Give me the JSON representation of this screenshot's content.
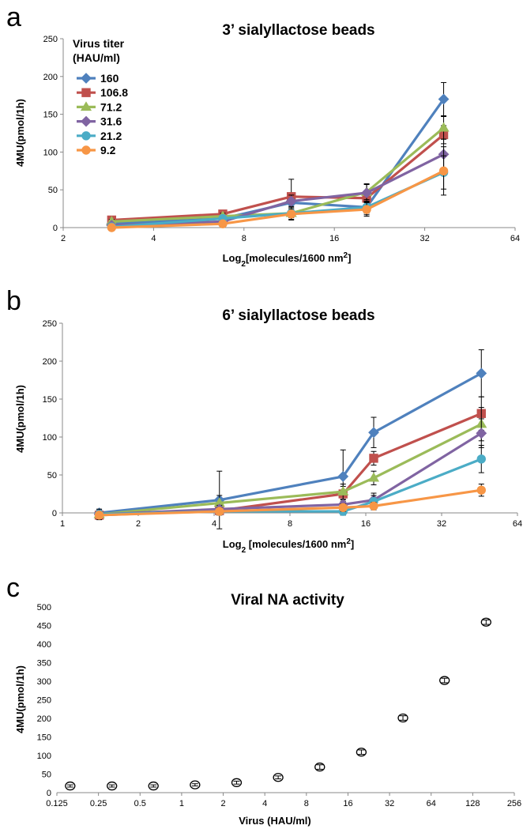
{
  "chart_data": [
    {
      "panel": "a",
      "type": "line",
      "title": "3’ sialyllactose beads",
      "xlabel_main": "Log",
      "xlabel_sub": "2",
      "xlabel_rest": "[molecules/1600 nm",
      "xlabel_sup": "2",
      "xlabel_end": "]",
      "ylabel": "4MU(pmol/1h)",
      "x_scale": "log2",
      "xlim": [
        2,
        64
      ],
      "ylim": [
        0,
        250
      ],
      "x_ticks": [
        2,
        4,
        8,
        16,
        32,
        64
      ],
      "x_tick_labels": [
        "2",
        "4",
        "8",
        "16",
        "32",
        "64"
      ],
      "y_ticks": [
        0,
        50,
        100,
        150,
        200,
        250
      ],
      "y_tick_labels": [
        "0",
        "50",
        "100",
        "150",
        "200",
        "250"
      ],
      "legend": {
        "title_line1": "Virus titer",
        "title_line2": "(HAU/ml)",
        "position": "top-left"
      },
      "x": [
        2.9,
        6.8,
        11.5,
        20.5,
        37
      ],
      "series": [
        {
          "name": "160",
          "color": "#4f81bd",
          "marker": "diamond",
          "values": [
            5,
            12,
            33,
            27,
            170
          ],
          "errors": [
            4,
            4,
            10,
            10,
            22
          ]
        },
        {
          "name": "106.8",
          "color": "#c0504d",
          "marker": "square",
          "values": [
            10,
            18,
            41,
            39,
            123
          ],
          "errors": [
            3,
            4,
            23,
            10,
            12
          ]
        },
        {
          "name": "71.2",
          "color": "#9bbb59",
          "marker": "triangle",
          "values": [
            8,
            15,
            19,
            47,
            132
          ],
          "errors": [
            3,
            4,
            9,
            10,
            15
          ]
        },
        {
          "name": "31.6",
          "color": "#8064a2",
          "marker": "diamond",
          "values": [
            3,
            8,
            35,
            46,
            97
          ],
          "errors": [
            3,
            4,
            8,
            12,
            20
          ]
        },
        {
          "name": "21.2",
          "color": "#4bacc6",
          "marker": "circle",
          "values": [
            1,
            12,
            19,
            27,
            73
          ],
          "errors": [
            3,
            4,
            6,
            8,
            22
          ]
        },
        {
          "name": "9.2",
          "color": "#f79646",
          "marker": "circle",
          "values": [
            0,
            5,
            18,
            24,
            75
          ],
          "errors": [
            4,
            4,
            7,
            9,
            32
          ]
        }
      ]
    },
    {
      "panel": "b",
      "type": "line",
      "title": "6’ sialyllactose beads",
      "xlabel_main": "Log",
      "xlabel_sub": "2",
      "xlabel_rest": " [molecules/1600 nm",
      "xlabel_sup": "2",
      "xlabel_end": "]",
      "ylabel": "4MU(pmol/1h)",
      "x_scale": "log2",
      "xlim": [
        1,
        64
      ],
      "ylim": [
        0,
        250
      ],
      "x_ticks": [
        1,
        2,
        4,
        8,
        16,
        32,
        64
      ],
      "x_tick_labels": [
        "1",
        "2",
        "4",
        "8",
        "16",
        "32",
        "64"
      ],
      "y_ticks": [
        0,
        50,
        100,
        150,
        200,
        250
      ],
      "y_tick_labels": [
        "0",
        "50",
        "100",
        "150",
        "200",
        "250"
      ],
      "x": [
        1.4,
        4.2,
        13,
        17.2,
        46
      ],
      "series": [
        {
          "name": "160",
          "color": "#4f81bd",
          "marker": "diamond",
          "values": [
            0,
            17,
            48,
            106,
            184
          ],
          "errors": [
            4,
            38,
            35,
            20,
            31
          ]
        },
        {
          "name": "106.8",
          "color": "#c0504d",
          "marker": "square",
          "values": [
            -3,
            3,
            25,
            72,
            131
          ],
          "errors": [
            4,
            4,
            10,
            9,
            22
          ]
        },
        {
          "name": "71.2",
          "color": "#9bbb59",
          "marker": "triangle",
          "values": [
            -2,
            13,
            28,
            46,
            117
          ],
          "errors": [
            4,
            10,
            10,
            9,
            22
          ]
        },
        {
          "name": "31.6",
          "color": "#8064a2",
          "marker": "diamond",
          "values": [
            -2,
            5,
            11,
            17,
            105
          ],
          "errors": [
            4,
            5,
            6,
            9,
            19
          ]
        },
        {
          "name": "21.2",
          "color": "#4bacc6",
          "marker": "circle",
          "values": [
            -2,
            2,
            2,
            15,
            71
          ],
          "errors": [
            7,
            5,
            5,
            8,
            18
          ]
        },
        {
          "name": "9.2",
          "color": "#f79646",
          "marker": "circle",
          "values": [
            -3,
            2,
            7,
            9,
            30
          ],
          "errors": [
            4,
            4,
            5,
            5,
            8
          ]
        }
      ]
    },
    {
      "panel": "c",
      "type": "scatter",
      "title": "Viral NA activity",
      "xlabel": "Virus (HAU/ml)",
      "ylabel": "4MU(pmol/1h)",
      "x_scale": "log2",
      "xlim": [
        0.125,
        256
      ],
      "ylim": [
        0,
        500
      ],
      "x_ticks": [
        0.125,
        0.25,
        0.5,
        1,
        2,
        4,
        8,
        16,
        32,
        64,
        128,
        256
      ],
      "x_tick_labels": [
        "0.125",
        "0.25",
        "0.5",
        "1",
        "2",
        "4",
        "8",
        "16",
        "32",
        "64",
        "128",
        "256"
      ],
      "y_ticks": [
        0,
        50,
        100,
        150,
        200,
        250,
        300,
        350,
        400,
        450,
        500
      ],
      "y_tick_labels": [
        "0",
        "50",
        "100",
        "150",
        "200",
        "250",
        "300",
        "350",
        "400",
        "450",
        "500"
      ],
      "series": [
        {
          "color": "#000000",
          "marker": "open-circle",
          "x": [
            0.156,
            0.313,
            0.625,
            1.25,
            2.5,
            5,
            10,
            20,
            40,
            80,
            160
          ],
          "values": [
            18,
            18,
            18,
            21,
            27,
            41,
            69,
            109,
            201,
            302,
            459
          ],
          "errors": [
            3,
            3,
            3,
            3,
            4,
            4,
            6,
            6,
            6,
            6,
            6
          ]
        }
      ]
    }
  ],
  "panel_letters": {
    "a": "a",
    "b": "b",
    "c": "c"
  }
}
